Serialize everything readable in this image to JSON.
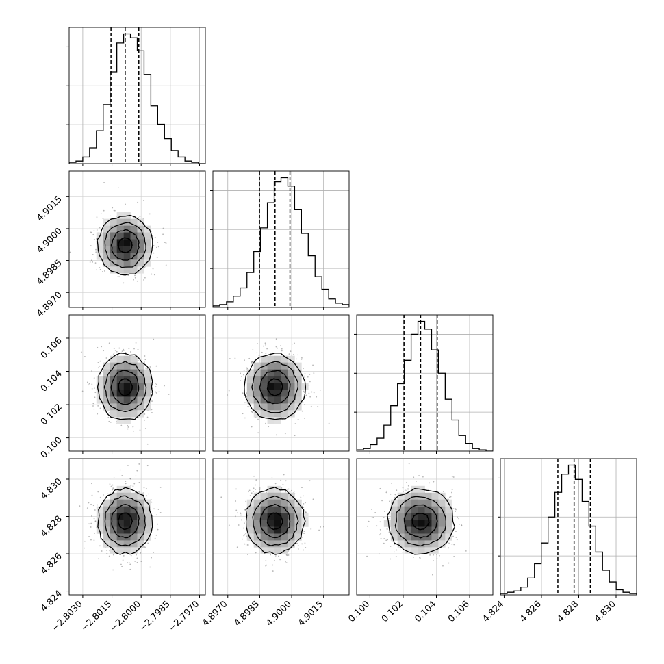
{
  "chart_data": {
    "type": "corner",
    "parameters": [
      {
        "ticks": [
          -2.803,
          -2.8015,
          -2.8,
          -2.7985,
          -2.797
        ],
        "tick_labels": [
          "−2.8030",
          "−2.8015",
          "−2.8000",
          "−2.7985",
          "−2.7970"
        ],
        "range": [
          -2.8037,
          -2.7967
        ],
        "quantiles": [
          -2.80155,
          -2.80082,
          -2.80012
        ]
      },
      {
        "ticks": [
          4.897,
          4.8985,
          4.9,
          4.9015
        ],
        "tick_labels": [
          "4.8970",
          "4.8985",
          "4.9000",
          "4.9015"
        ],
        "range": [
          4.8963,
          4.9027
        ],
        "quantiles": [
          4.89849,
          4.89922,
          4.89992
        ]
      },
      {
        "ticks": [
          0.1,
          0.102,
          0.104,
          0.106
        ],
        "tick_labels": [
          "0.100",
          "0.102",
          "0.104",
          "0.106"
        ],
        "range": [
          0.0992,
          0.1074
        ],
        "quantiles": [
          0.10205,
          0.10305,
          0.10405
        ]
      },
      {
        "ticks": [
          4.824,
          4.826,
          4.828,
          4.83
        ],
        "tick_labels": [
          "4.824",
          "4.826",
          "4.828",
          "4.830"
        ],
        "range": [
          4.8238,
          4.8311
        ],
        "quantiles": [
          4.82688,
          4.82775,
          4.82862
        ]
      }
    ],
    "histograms": [
      {
        "bins": 20,
        "counts": [
          1,
          2,
          5,
          12,
          25,
          45,
          70,
          92,
          99,
          96,
          86,
          68,
          44,
          30,
          19,
          10,
          5,
          2,
          1,
          0
        ]
      },
      {
        "bins": 20,
        "counts": [
          1,
          2,
          4,
          8,
          14,
          25,
          40,
          57,
          75,
          90,
          93,
          87,
          70,
          53,
          37,
          22,
          13,
          6,
          3,
          2
        ]
      },
      {
        "bins": 20,
        "counts": [
          1,
          2,
          5,
          10,
          20,
          35,
          52,
          70,
          90,
          100,
          94,
          78,
          60,
          40,
          24,
          12,
          6,
          2,
          1,
          0
        ]
      },
      {
        "bins": 20,
        "counts": [
          1,
          2,
          3,
          6,
          13,
          24,
          40,
          60,
          79,
          93,
          100,
          89,
          72,
          53,
          33,
          19,
          10,
          4,
          2,
          1
        ]
      }
    ],
    "grid": true,
    "quantile_style": "dashed"
  }
}
